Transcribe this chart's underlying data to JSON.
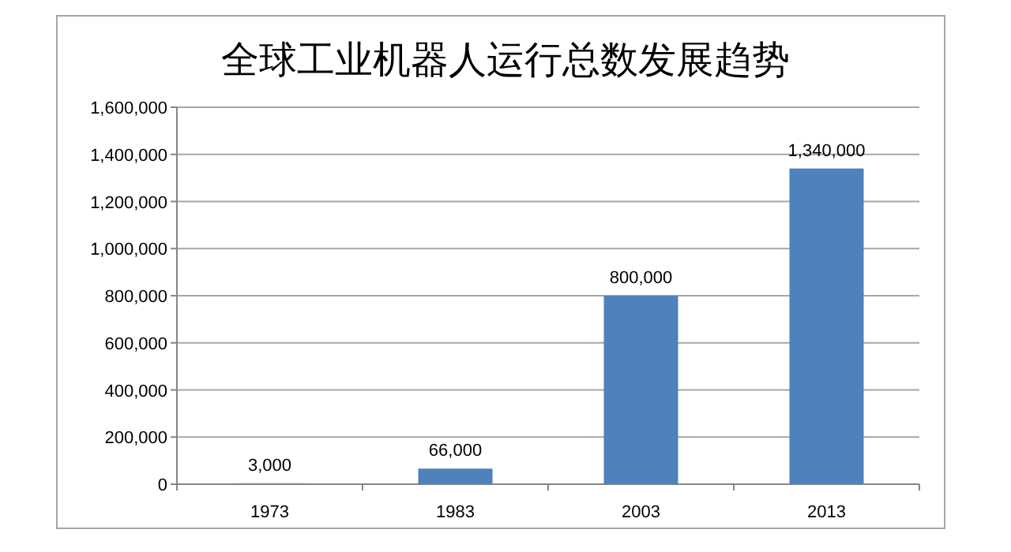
{
  "chart_data": {
    "type": "bar",
    "title": "全球工业机器人运行总数发展趋势",
    "categories": [
      "1973",
      "1983",
      "2003",
      "2013"
    ],
    "values": [
      3000,
      66000,
      800000,
      1340000
    ],
    "value_labels": [
      "3,000",
      "66,000",
      "800,000",
      "1,340,000"
    ],
    "color": "#4f81bd",
    "ylim": [
      0,
      1600000
    ],
    "yticks": [
      0,
      {
        "value": 200000,
        "label": "200,000"
      },
      {
        "value": 400000,
        "label": "400,000"
      },
      {
        "value": 600000,
        "label": "600,000"
      },
      {
        "value": 800000,
        "label": "800,000"
      },
      {
        "value": 1000000,
        "label": "1,000,000"
      },
      {
        "value": 1200000,
        "label": "1,200,000"
      },
      {
        "value": 1400000,
        "label": "1,400,000"
      },
      {
        "value": 1600000,
        "label": "1,600,000"
      }
    ],
    "grid": "y"
  }
}
